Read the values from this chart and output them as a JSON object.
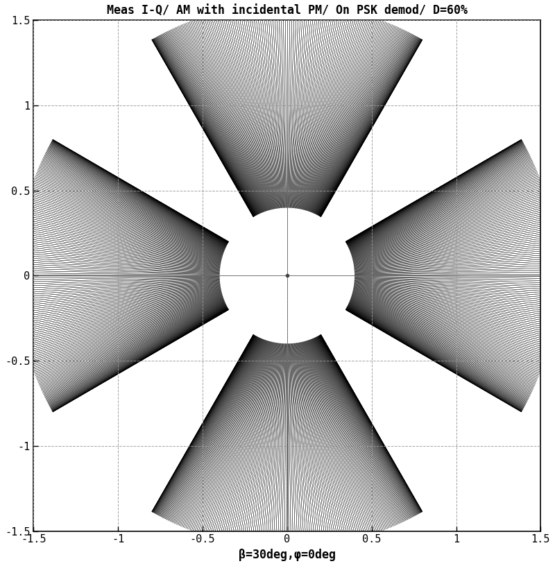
{
  "title": "Meas I-Q/ AM with incidental PM/ On PSK demod/ D=60%",
  "xlabel": "β=30deg,φ=0deg",
  "xlim": [
    -1.5,
    1.5
  ],
  "ylim": [
    -1.5,
    1.5
  ],
  "xticks": [
    -1.5,
    -1,
    -0.5,
    0,
    0.5,
    1,
    1.5
  ],
  "yticks": [
    -1.5,
    -1,
    -0.5,
    0,
    0.5,
    1,
    1.5
  ],
  "line_color": "#000000",
  "background_color": "#ffffff",
  "D": 0.6,
  "beta_deg": 30,
  "phi_deg": 0,
  "n_mod_phases": 400,
  "title_fontsize": 12,
  "label_fontsize": 12,
  "tick_fontsize": 11
}
